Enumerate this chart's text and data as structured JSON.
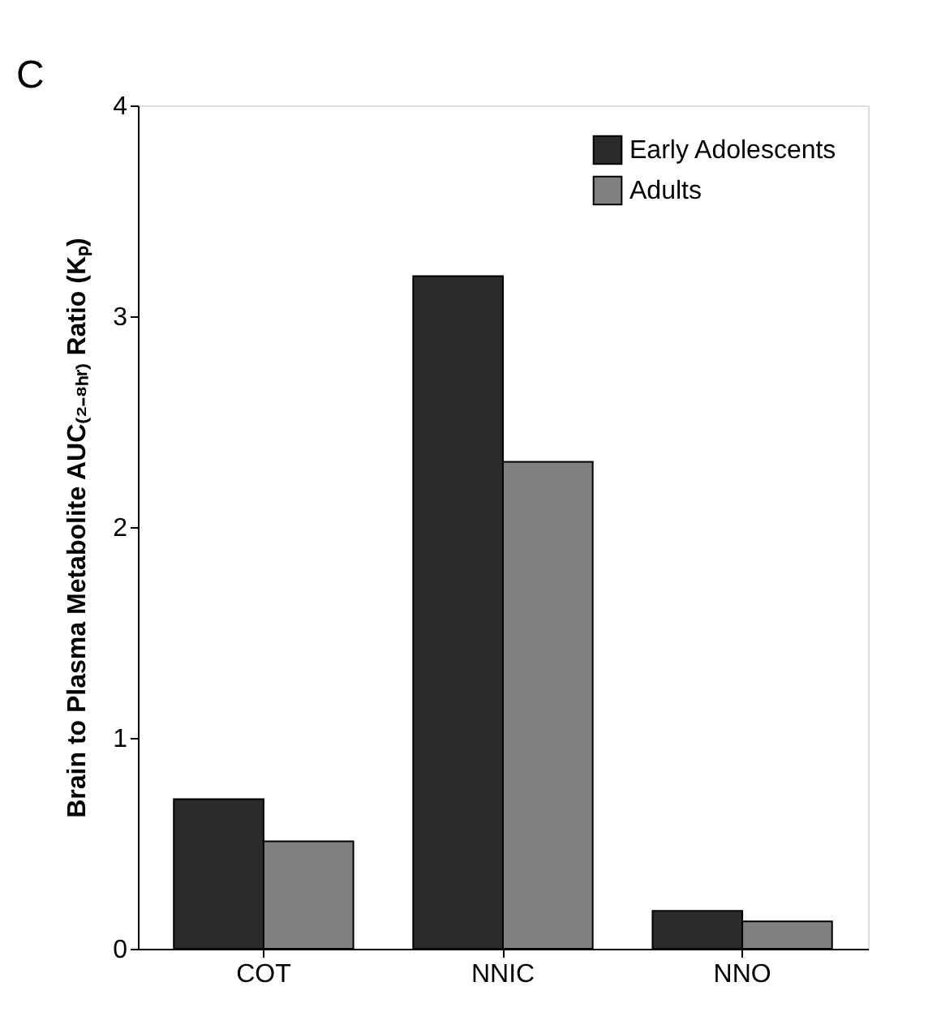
{
  "chart_data": {
    "type": "bar",
    "ylabel": "Brain to Plasma Metabolite AUC₍₂₋₈ₕᵣ₎ Ratio (Kₚ)",
    "categories": [
      "COT",
      "NNIC",
      "NNO"
    ],
    "series": [
      {
        "name": "Early Adolescents",
        "color": "#2b2b2b",
        "values": [
          0.71,
          3.19,
          0.18
        ]
      },
      {
        "name": "Adults",
        "color": "#808080",
        "values": [
          0.51,
          2.31,
          0.13
        ]
      }
    ],
    "ylim": [
      0,
      4
    ],
    "yticks": [
      0,
      1,
      2,
      3,
      4
    ],
    "grid": false,
    "legend": "top right",
    "annotations": [
      "C"
    ]
  }
}
